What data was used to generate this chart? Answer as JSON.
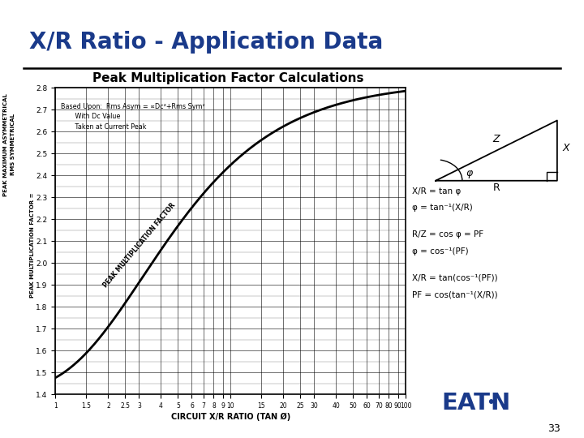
{
  "title": "X/R Ratio - Application Data",
  "subtitle": "Peak Multiplication Factor Calculations",
  "title_color": "#1a3a8a",
  "subtitle_color": "#000000",
  "bg_color": "#ffffff",
  "plot_bg_color": "#ffffff",
  "ylabel_top": "PEAK MAXIMUM ASYMMETRICAL",
  "ylabel_mid": "RMS SYMMETRICAL",
  "ylabel_bot": "PEAK MULTIPLICATION FACTOR =",
  "xlabel": "CIRCUIT X/R RATIO (TAN Ø)",
  "ylim": [
    1.4,
    2.8
  ],
  "annotation_line1": "Based Upon:  Rms Asym = ∝Dc²+Rms Sym²",
  "annotation_line2": "       With Dc Value",
  "annotation_line3": "       Taken at Current Peak",
  "curve_label": "PEAK MULTIPLICATION FACTOR",
  "eaton_color": "#1a3a8a",
  "page_num": "33",
  "tri_label_z": "Z",
  "tri_label_x": "X",
  "tri_label_r": "R",
  "tri_label_phi": "φ",
  "eq1": "X/R = tan φ",
  "eq2": "φ = tan⁻¹(X/R)",
  "eq3": "R/Z = cos φ = PF",
  "eq4": "φ = cos⁻¹(PF)",
  "eq5": "X/R = tan(cos⁻¹(PF))",
  "eq6": "PF = cos(tan⁻¹(X/R))"
}
